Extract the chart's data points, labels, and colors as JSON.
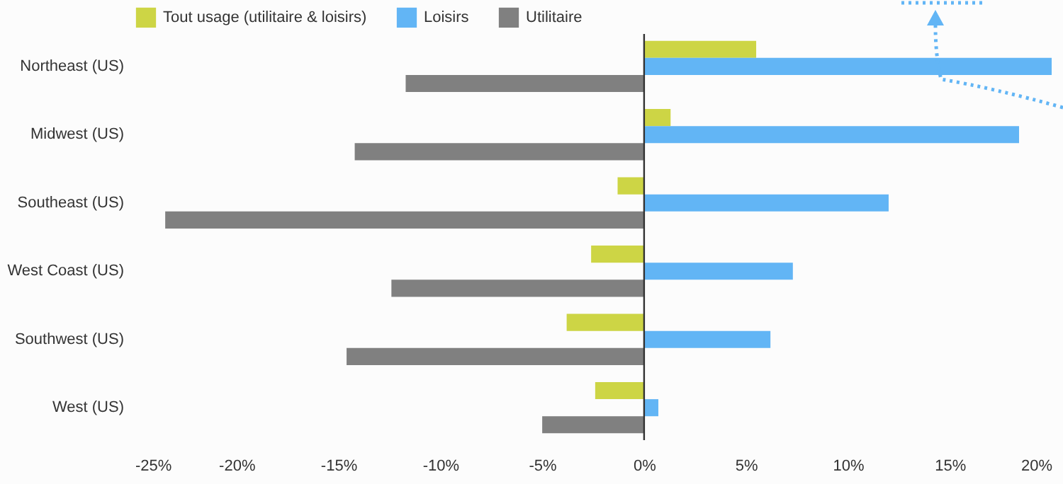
{
  "chart_data": {
    "type": "bar",
    "orientation": "horizontal",
    "categories": [
      "Northeast (US)",
      "Midwest (US)",
      "Southeast (US)",
      "West Coast (US)",
      "Southwest (US)",
      "West (US)"
    ],
    "series": [
      {
        "name": "Tout usage (utilitaire & loisirs)",
        "color": "#cdd545",
        "values": [
          5.5,
          1.3,
          -1.3,
          -2.6,
          -3.8,
          -2.4
        ]
      },
      {
        "name": "Loisirs",
        "color": "#62b5f5",
        "values": [
          20.0,
          18.4,
          12.0,
          7.3,
          6.2,
          0.7
        ]
      },
      {
        "name": "Utilitaire",
        "color": "#808080",
        "values": [
          -11.7,
          -14.2,
          -23.5,
          -12.4,
          -14.6,
          -5.0
        ]
      }
    ],
    "xlim": [
      -25,
      20
    ],
    "xticks": [
      {
        "value": -25,
        "label": "-25%"
      },
      {
        "value": -20,
        "label": "-20%"
      },
      {
        "value": -15,
        "label": "-15%"
      },
      {
        "value": -10,
        "label": "-10%"
      },
      {
        "value": -5,
        "label": "-5%"
      },
      {
        "value": 0,
        "label": "0%"
      },
      {
        "value": 5,
        "label": "5%"
      },
      {
        "value": 10,
        "label": "10%"
      },
      {
        "value": 15,
        "label": "15%"
      },
      {
        "value": 20,
        "label": "20%"
      }
    ],
    "ref_lines": [
      {
        "axis": "x",
        "value": 0,
        "color": "#333333"
      }
    ],
    "grid": false,
    "legend": "top"
  }
}
